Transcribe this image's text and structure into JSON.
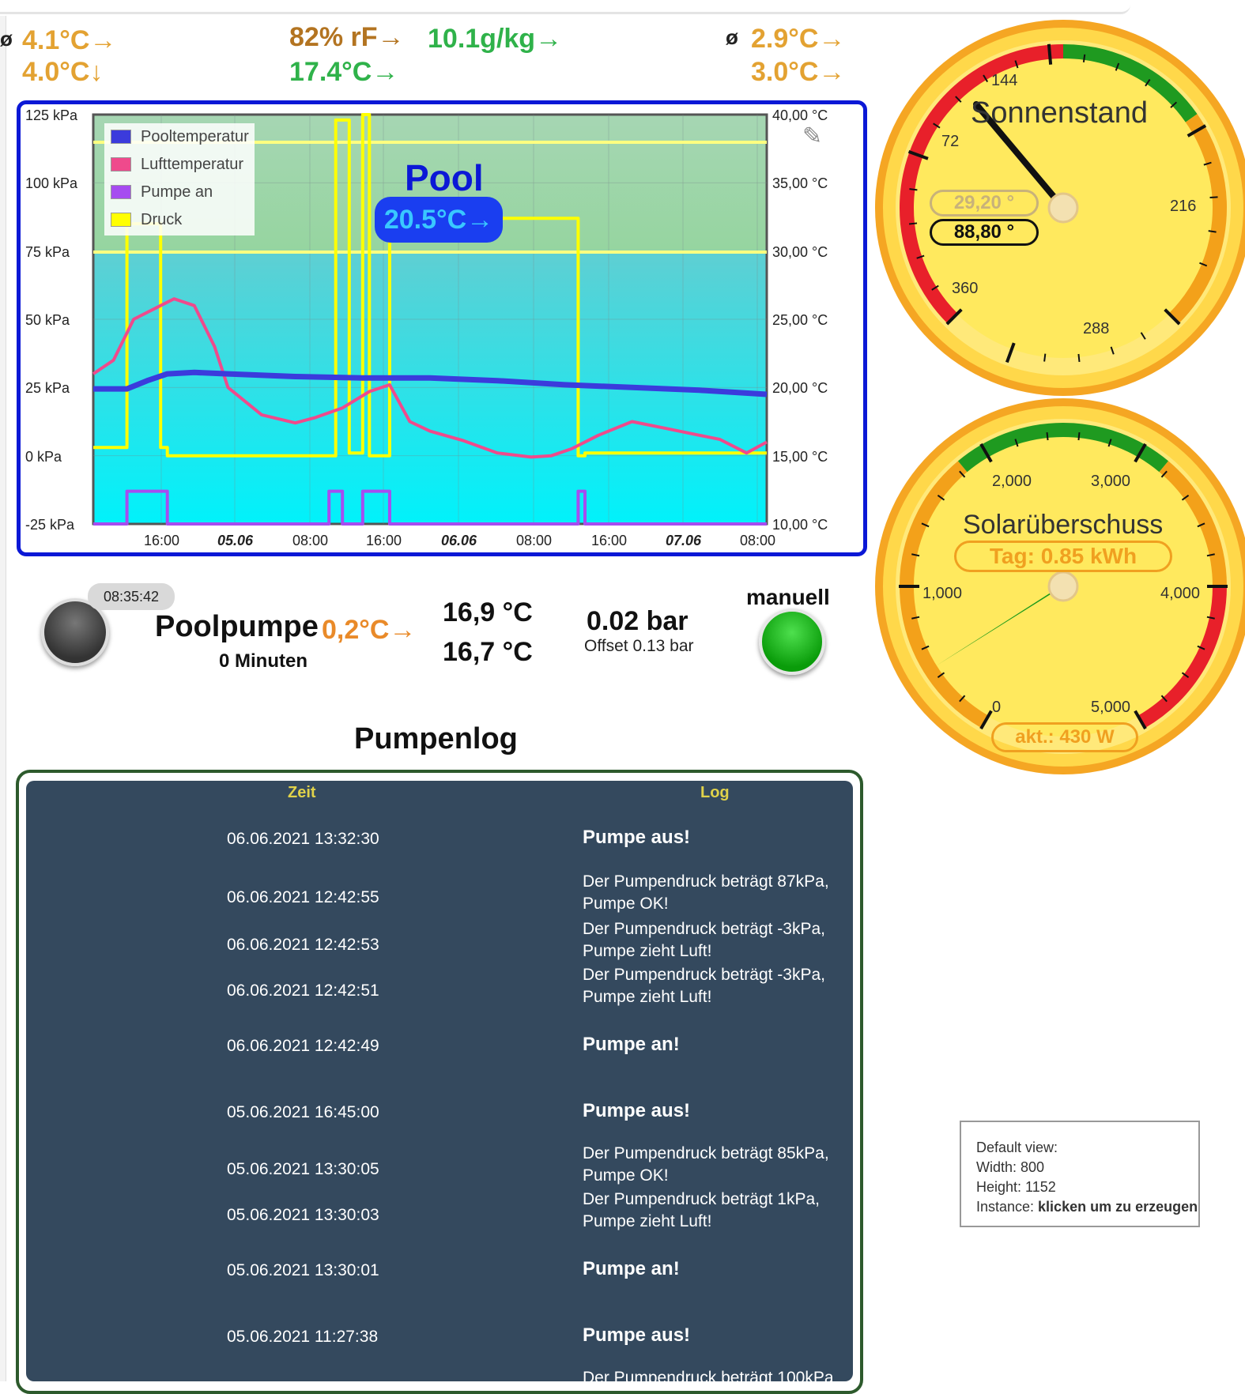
{
  "top_readings": {
    "avg_symbol_left": "ø",
    "left_temp_1": "4.1°C→",
    "left_temp_2": "4.0°C↓",
    "humidity": "82% rF→",
    "abs_humidity": "10.1g/kg→",
    "dew_temp": "17.4°C→",
    "avg_symbol_right": "ø",
    "right_temp_1": "2.9°C→",
    "right_temp_2": "3.0°C→"
  },
  "chart": {
    "pool_title": "Pool",
    "pool_temp_badge": "20.5°C→",
    "legend": [
      {
        "label": "Pooltemperatur",
        "color": "#3b3bdc"
      },
      {
        "label": "Lufttemperatur",
        "color": "#ef4a8c"
      },
      {
        "label": "Pumpe an",
        "color": "#a64cf0"
      },
      {
        "label": "Druck",
        "color": "#ffff00"
      }
    ]
  },
  "chart_data": {
    "type": "line",
    "left_axis_ticks": [
      "125 kPa",
      "100 kPa",
      "75 kPa",
      "50 kPa",
      "25 kPa",
      "0 kPa",
      "-25 kPa"
    ],
    "right_axis_ticks": [
      "40,00 °C",
      "35,00 °C",
      "30,00 °C",
      "25,00 °C",
      "20,00 °C",
      "15,00 °C",
      "10,00 °C"
    ],
    "x_ticks": [
      {
        "label": "16:00",
        "bold": false
      },
      {
        "label": "05.06",
        "bold": true
      },
      {
        "label": "08:00",
        "bold": false
      },
      {
        "label": "16:00",
        "bold": false
      },
      {
        "label": "06.06",
        "bold": true
      },
      {
        "label": "08:00",
        "bold": false
      },
      {
        "label": "16:00",
        "bold": false
      },
      {
        "label": "07.06",
        "bold": true
      },
      {
        "label": "08:00",
        "bold": false
      }
    ],
    "ylim_left": [
      -25,
      125
    ],
    "ylim_right": [
      10,
      40
    ],
    "series": [
      {
        "name": "Pooltemperatur",
        "color": "#3b3bdc",
        "axis": "right",
        "x": [
          0,
          0.05,
          0.08,
          0.11,
          0.15,
          0.2,
          0.3,
          0.4,
          0.5,
          0.6,
          0.7,
          0.8,
          0.9,
          1.0
        ],
        "values": [
          19.9,
          19.9,
          20.5,
          21.0,
          21.1,
          21.0,
          20.8,
          20.7,
          20.7,
          20.5,
          20.2,
          20.0,
          19.8,
          19.5
        ]
      },
      {
        "name": "Lufttemperatur",
        "color": "#ef4a8c",
        "axis": "right",
        "x": [
          0,
          0.03,
          0.06,
          0.1,
          0.12,
          0.15,
          0.18,
          0.2,
          0.25,
          0.3,
          0.33,
          0.37,
          0.41,
          0.44,
          0.47,
          0.5,
          0.55,
          0.6,
          0.65,
          0.68,
          0.71,
          0.75,
          0.8,
          0.85,
          0.9,
          0.93,
          0.97,
          1.0
        ],
        "values": [
          21.0,
          22.0,
          25.0,
          26.0,
          26.5,
          26.0,
          23.0,
          20.0,
          18.0,
          17.4,
          17.8,
          18.5,
          19.7,
          20.2,
          17.5,
          16.8,
          16.1,
          15.2,
          14.9,
          15.0,
          15.5,
          16.5,
          17.5,
          17.0,
          16.5,
          16.2,
          15.2,
          16.0
        ]
      },
      {
        "name": "Pumpe an",
        "color": "#a64cf0",
        "axis": "left",
        "x": [
          0,
          0.05,
          0.05,
          0.11,
          0.11,
          0.35,
          0.35,
          0.37,
          0.37,
          0.4,
          0.4,
          0.44,
          0.44,
          0.72,
          0.72,
          0.73,
          0.73,
          1.0
        ],
        "values": [
          -25,
          -25,
          -13,
          -13,
          -25,
          -25,
          -13,
          -13,
          -25,
          -25,
          -13,
          -13,
          -25,
          -25,
          -13,
          -13,
          -25,
          -25
        ]
      },
      {
        "name": "Druck",
        "color": "#ffff00",
        "axis": "left",
        "x": [
          0,
          0.05,
          0.05,
          0.1,
          0.1,
          0.11,
          0.11,
          0.36,
          0.36,
          0.38,
          0.38,
          0.4,
          0.4,
          0.41,
          0.41,
          0.44,
          0.44,
          0.72,
          0.72,
          0.73,
          0.73,
          1.0
        ],
        "values": [
          3,
          3,
          85,
          85,
          3,
          3,
          0,
          0,
          123,
          123,
          1,
          1,
          125,
          125,
          0,
          0,
          87,
          87,
          0,
          0,
          1,
          1
        ]
      }
    ]
  },
  "pump": {
    "time_badge": "08:35:42",
    "title": "Poolpumpe",
    "delta": "0,2°C→",
    "minutes": "0 Minuten",
    "temp_1": "16,9 °C",
    "temp_2": "16,7 °C",
    "pressure": "0.02 bar",
    "offset": "Offset 0.13 bar",
    "mode": "manuell"
  },
  "log": {
    "title": "Pumpenlog",
    "col_time": "Zeit",
    "col_log": "Log",
    "rows": [
      {
        "time": "06.06.2021 13:32:30",
        "msg": "Pumpe aus!",
        "bold": true
      },
      {
        "time": "06.06.2021 12:42:55",
        "msg": "Der Pumpendruck beträgt 87kPa, Pumpe OK!",
        "bold": false
      },
      {
        "time": "06.06.2021 12:42:53",
        "msg": "Der Pumpendruck beträgt -3kPa, Pumpe zieht Luft!",
        "bold": false
      },
      {
        "time": "06.06.2021 12:42:51",
        "msg": "Der Pumpendruck beträgt -3kPa, Pumpe zieht Luft!",
        "bold": false
      },
      {
        "time": "06.06.2021 12:42:49",
        "msg": "Pumpe an!",
        "bold": true
      },
      {
        "time": "05.06.2021 16:45:00",
        "msg": "Pumpe aus!",
        "bold": true
      },
      {
        "time": "05.06.2021 13:30:05",
        "msg": "Der Pumpendruck beträgt 85kPa, Pumpe OK!",
        "bold": false
      },
      {
        "time": "05.06.2021 13:30:03",
        "msg": "Der Pumpendruck beträgt 1kPa, Pumpe zieht Luft!",
        "bold": false
      },
      {
        "time": "05.06.2021 13:30:01",
        "msg": "Pumpe an!",
        "bold": true
      },
      {
        "time": "05.06.2021 11:27:38",
        "msg": "Pumpe aus!",
        "bold": true
      },
      {
        "time": "",
        "msg": "Der Pumpendruck beträgt 100kPa",
        "bold": false
      }
    ]
  },
  "gauge_sun": {
    "title": "Sonnenstand",
    "value_faded": "29,20 °",
    "value": "88,80 °",
    "ticks": [
      "72",
      "144",
      "216",
      "288",
      "360"
    ],
    "needle_value": 88.8
  },
  "gauge_solar": {
    "title": "Solarüberschuss",
    "day": "Tag: 0.85 kWh",
    "current": "akt.: 430 W",
    "ticks": [
      "0",
      "1,000",
      "2,000",
      "3,000",
      "4,000",
      "5,000"
    ],
    "needle_value": 430
  },
  "info": {
    "line1": "Default view:",
    "line2": "Width: 800",
    "line3": "Height: 1152",
    "instance_label": "Instance: ",
    "instance_value": "klicken um zu erzeugen"
  }
}
